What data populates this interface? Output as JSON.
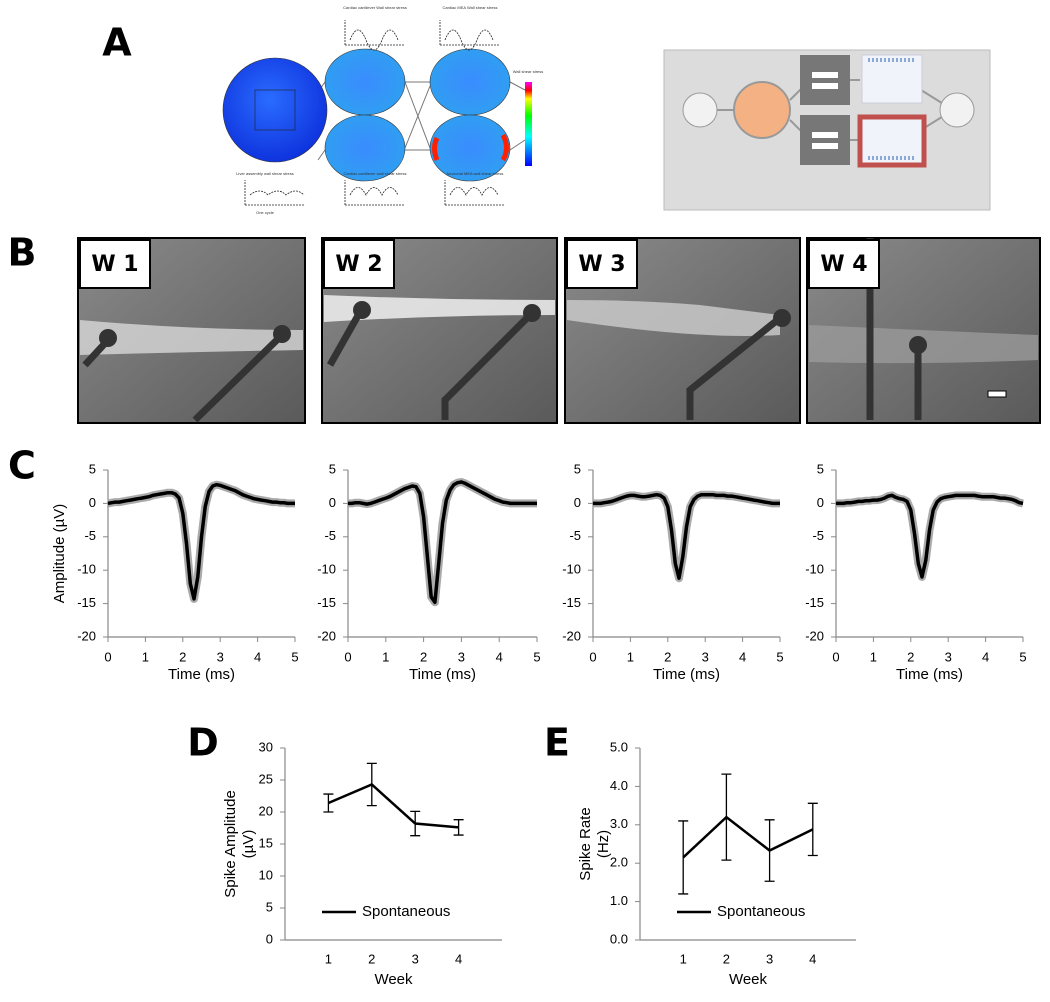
{
  "panels": [
    "A",
    "B",
    "C",
    "D",
    "E"
  ],
  "panel_a": {
    "texts": [
      "Cardiac cantilever Wall shear stress",
      "Cardiac MEA Wall shear stress",
      "Wall shear stress",
      "Liver assembly wall shear stress",
      "Cardiac cantilever wall shear stress",
      "Neuronal MEA wall shear stress",
      "One cycle"
    ]
  },
  "panel_b": {
    "labels": [
      "W 1",
      "W 2",
      "W 3",
      "W 4"
    ]
  },
  "chart_data": [
    {
      "type": "line",
      "x": [
        0,
        0.1,
        0.2,
        0.3,
        0.4,
        0.5,
        0.6,
        0.7,
        0.8,
        0.9,
        1,
        1.1,
        1.2,
        1.3,
        1.4,
        1.5,
        1.6,
        1.7,
        1.8,
        1.9,
        2,
        2.1,
        2.2,
        2.3,
        2.4,
        2.5,
        2.6,
        2.7,
        2.8,
        2.9,
        3,
        3.1,
        3.2,
        3.3,
        3.4,
        3.5,
        3.6,
        3.7,
        3.8,
        3.9,
        4,
        4.1,
        4.2,
        4.3,
        4.4,
        4.5,
        4.6,
        4.7,
        4.8,
        4.9,
        5
      ],
      "values": [
        0,
        0.1,
        0.2,
        0.2,
        0.3,
        0.4,
        0.5,
        0.6,
        0.7,
        0.8,
        0.9,
        1.0,
        1.2,
        1.3,
        1.4,
        1.5,
        1.6,
        1.6,
        1.4,
        0.8,
        -1.5,
        -6,
        -12,
        -14.3,
        -11,
        -5,
        -0.5,
        1.8,
        2.6,
        2.8,
        2.7,
        2.5,
        2.3,
        2.1,
        1.9,
        1.6,
        1.3,
        1.1,
        0.9,
        0.7,
        0.6,
        0.5,
        0.4,
        0.3,
        0.2,
        0.2,
        0.1,
        0.1,
        0,
        0,
        0
      ],
      "color": "#000000",
      "band_color": "#aaaaaa",
      "xlim": [
        0,
        5
      ],
      "xticks": [
        0,
        1,
        2,
        3,
        4,
        5
      ],
      "ylim": [
        -20,
        5
      ],
      "yticks": [
        -20,
        -15,
        -10,
        -5,
        0,
        5
      ],
      "xlabel": "Time (ms)",
      "ylabel": "Amplitude (µV)"
    },
    {
      "type": "line",
      "x": [
        0,
        0.1,
        0.2,
        0.3,
        0.4,
        0.5,
        0.6,
        0.7,
        0.8,
        0.9,
        1,
        1.1,
        1.2,
        1.3,
        1.4,
        1.5,
        1.6,
        1.7,
        1.8,
        1.9,
        2,
        2.1,
        2.2,
        2.3,
        2.4,
        2.5,
        2.6,
        2.7,
        2.8,
        2.9,
        3,
        3.1,
        3.2,
        3.3,
        3.4,
        3.5,
        3.6,
        3.7,
        3.8,
        3.9,
        4,
        4.1,
        4.2,
        4.3,
        4.4,
        4.5,
        4.6,
        4.7,
        4.8,
        4.9,
        5
      ],
      "values": [
        0,
        0,
        0.1,
        0.1,
        0,
        -0.1,
        0,
        0.2,
        0.4,
        0.6,
        0.8,
        1.0,
        1.3,
        1.6,
        1.9,
        2.2,
        2.4,
        2.6,
        2.5,
        1.5,
        -2,
        -8,
        -14,
        -14.8,
        -9,
        -3,
        0.5,
        2,
        2.8,
        3.1,
        3.2,
        3.0,
        2.7,
        2.4,
        2.1,
        1.8,
        1.5,
        1.2,
        0.9,
        0.6,
        0.4,
        0.2,
        0.1,
        0,
        0,
        0,
        0,
        0,
        0,
        0,
        0
      ],
      "color": "#000000",
      "band_color": "#aaaaaa",
      "xlim": [
        0,
        5
      ],
      "xticks": [
        0,
        1,
        2,
        3,
        4,
        5
      ],
      "ylim": [
        -20,
        5
      ],
      "yticks": [
        -20,
        -15,
        -10,
        -5,
        0,
        5
      ],
      "xlabel": "Time (ms)"
    },
    {
      "type": "line",
      "x": [
        0,
        0.1,
        0.2,
        0.3,
        0.4,
        0.5,
        0.6,
        0.7,
        0.8,
        0.9,
        1,
        1.1,
        1.2,
        1.3,
        1.4,
        1.5,
        1.6,
        1.7,
        1.8,
        1.9,
        2,
        2.1,
        2.2,
        2.3,
        2.4,
        2.5,
        2.6,
        2.7,
        2.8,
        2.9,
        3,
        3.1,
        3.2,
        3.3,
        3.4,
        3.5,
        3.6,
        3.7,
        3.8,
        3.9,
        4,
        4.1,
        4.2,
        4.3,
        4.4,
        4.5,
        4.6,
        4.7,
        4.8,
        4.9,
        5
      ],
      "values": [
        0,
        0,
        0,
        0.1,
        0.2,
        0.3,
        0.5,
        0.7,
        0.9,
        1.1,
        1.2,
        1.2,
        1.1,
        1.0,
        1.0,
        1.1,
        1.2,
        1.3,
        1.2,
        0.8,
        -0.5,
        -4,
        -9,
        -11.2,
        -8,
        -3.5,
        -0.5,
        0.6,
        1.1,
        1.3,
        1.3,
        1.3,
        1.3,
        1.2,
        1.2,
        1.2,
        1.1,
        1.1,
        1.0,
        0.9,
        0.8,
        0.7,
        0.6,
        0.5,
        0.4,
        0.3,
        0.2,
        0.1,
        0,
        0,
        0
      ],
      "color": "#000000",
      "band_color": "#aaaaaa",
      "xlim": [
        0,
        5
      ],
      "xticks": [
        0,
        1,
        2,
        3,
        4,
        5
      ],
      "ylim": [
        -20,
        5
      ],
      "yticks": [
        -20,
        -15,
        -10,
        -5,
        0,
        5
      ],
      "xlabel": "Time (ms)"
    },
    {
      "type": "line",
      "x": [
        0,
        0.1,
        0.2,
        0.3,
        0.4,
        0.5,
        0.6,
        0.7,
        0.8,
        0.9,
        1,
        1.1,
        1.2,
        1.3,
        1.4,
        1.5,
        1.6,
        1.7,
        1.8,
        1.9,
        2,
        2.1,
        2.2,
        2.3,
        2.4,
        2.5,
        2.6,
        2.7,
        2.8,
        2.9,
        3,
        3.1,
        3.2,
        3.3,
        3.4,
        3.5,
        3.6,
        3.7,
        3.8,
        3.9,
        4,
        4.1,
        4.2,
        4.3,
        4.4,
        4.5,
        4.6,
        4.7,
        4.8,
        4.9,
        5
      ],
      "values": [
        0,
        0,
        0,
        0.1,
        0.1,
        0.2,
        0.3,
        0.3,
        0.4,
        0.4,
        0.5,
        0.5,
        0.6,
        0.8,
        1.1,
        1.2,
        0.9,
        0.7,
        0.6,
        0.3,
        -1,
        -4.5,
        -9,
        -11,
        -8.5,
        -4,
        -1,
        0.2,
        0.7,
        0.9,
        1.0,
        1.1,
        1.2,
        1.2,
        1.2,
        1.2,
        1.2,
        1.2,
        1.1,
        1.0,
        1.0,
        1.0,
        1.0,
        0.9,
        0.8,
        0.8,
        0.7,
        0.6,
        0.4,
        0.1,
        0
      ],
      "color": "#000000",
      "band_color": "#aaaaaa",
      "xlim": [
        0,
        5
      ],
      "xticks": [
        0,
        1,
        2,
        3,
        4,
        5
      ],
      "ylim": [
        -20,
        5
      ],
      "yticks": [
        -20,
        -15,
        -10,
        -5,
        0,
        5
      ],
      "xlabel": "Time (ms)"
    },
    {
      "type": "errorline",
      "categories": [
        "1",
        "2",
        "3",
        "4"
      ],
      "series": [
        {
          "name": "Spontaneous",
          "color": "#000000",
          "values": [
            21.4,
            24.3,
            18.2,
            17.6
          ],
          "errors": [
            1.4,
            3.3,
            1.9,
            1.2
          ]
        }
      ],
      "ylim": [
        0,
        30
      ],
      "yticks": [
        0,
        5,
        10,
        15,
        20,
        25,
        30
      ],
      "xlabel": "Week",
      "ylabel": [
        "Spike Amplitude",
        "(µV)"
      ],
      "legend": "lower left"
    },
    {
      "type": "errorline",
      "categories": [
        "1",
        "2",
        "3",
        "4"
      ],
      "series": [
        {
          "name": "Spontaneous",
          "color": "#000000",
          "values": [
            2.15,
            3.2,
            2.33,
            2.88
          ],
          "errors": [
            0.95,
            1.12,
            0.8,
            0.68
          ]
        }
      ],
      "ylim": [
        0,
        5
      ],
      "yticks": [
        {
          "value": 0,
          "label": "0.0"
        },
        {
          "value": 1,
          "label": "1.0"
        },
        {
          "value": 2,
          "label": "2.0"
        },
        {
          "value": 3,
          "label": "3.0"
        },
        {
          "value": 4,
          "label": "4.0"
        },
        {
          "value": 5,
          "label": "5.0"
        }
      ],
      "xlabel": "Week",
      "ylabel": [
        "Spike Rate",
        "(Hz)"
      ],
      "legend": "lower left"
    }
  ]
}
